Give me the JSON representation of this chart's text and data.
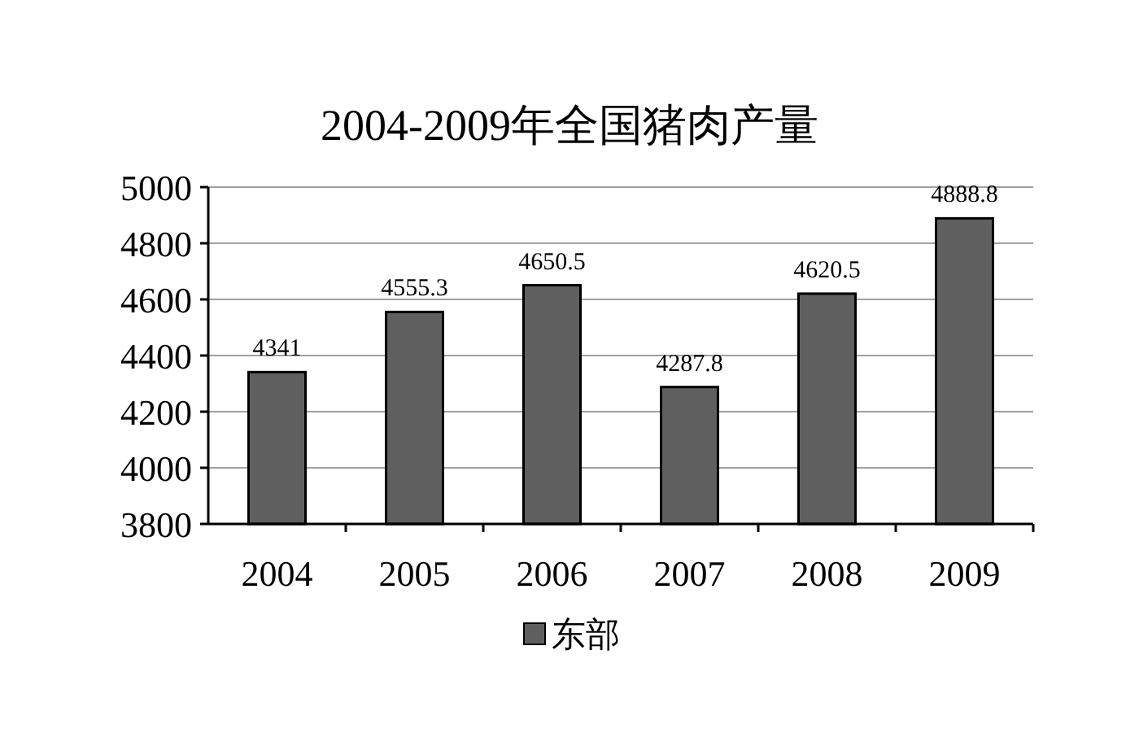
{
  "chart_data": {
    "type": "bar",
    "title": "2004-2009年全国猪肉产量",
    "categories": [
      "2004",
      "2005",
      "2006",
      "2007",
      "2008",
      "2009"
    ],
    "series": [
      {
        "name": "东部",
        "color": "#5f5f5f",
        "values": [
          4341,
          4555.3,
          4650.5,
          4287.8,
          4620.5,
          4888.8
        ]
      }
    ],
    "ylim": [
      3800,
      5000
    ],
    "yticks": [
      3800,
      4000,
      4200,
      4400,
      4600,
      4800,
      5000
    ],
    "grid": "y",
    "legend": "bottom",
    "data_labels": true
  }
}
